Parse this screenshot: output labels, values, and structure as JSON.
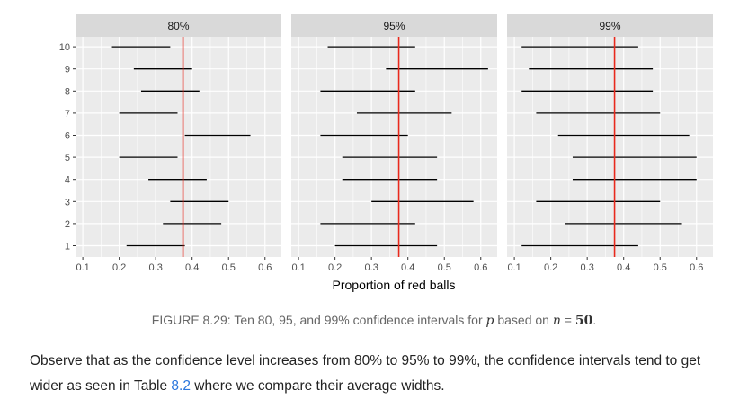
{
  "chart_data": {
    "type": "interval",
    "xlabel": "Proportion of red balls",
    "xlim": [
      0.08,
      0.645
    ],
    "x_ticks": [
      "0.1",
      "0.2",
      "0.3",
      "0.4",
      "0.5",
      "0.6"
    ],
    "x_tick_values": [
      0.1,
      0.2,
      0.3,
      0.4,
      0.5,
      0.6
    ],
    "y_categories": [
      "1",
      "2",
      "3",
      "4",
      "5",
      "6",
      "7",
      "8",
      "9",
      "10"
    ],
    "reference_line": 0.375,
    "colors": {
      "interval": "#000000",
      "reference": "#e8291c",
      "panel_bg": "#ebebeb",
      "strip_bg": "#d9d9d9",
      "grid": "#ffffff"
    },
    "grid": true,
    "panels": [
      {
        "label": "80%",
        "intervals": [
          {
            "y": 1,
            "lo": 0.22,
            "hi": 0.38
          },
          {
            "y": 2,
            "lo": 0.32,
            "hi": 0.48
          },
          {
            "y": 3,
            "lo": 0.34,
            "hi": 0.5
          },
          {
            "y": 4,
            "lo": 0.28,
            "hi": 0.44
          },
          {
            "y": 5,
            "lo": 0.2,
            "hi": 0.36
          },
          {
            "y": 6,
            "lo": 0.38,
            "hi": 0.56
          },
          {
            "y": 7,
            "lo": 0.2,
            "hi": 0.36
          },
          {
            "y": 8,
            "lo": 0.26,
            "hi": 0.42
          },
          {
            "y": 9,
            "lo": 0.24,
            "hi": 0.4
          },
          {
            "y": 10,
            "lo": 0.18,
            "hi": 0.34
          }
        ]
      },
      {
        "label": "95%",
        "intervals": [
          {
            "y": 1,
            "lo": 0.2,
            "hi": 0.48
          },
          {
            "y": 2,
            "lo": 0.16,
            "hi": 0.42
          },
          {
            "y": 3,
            "lo": 0.3,
            "hi": 0.58
          },
          {
            "y": 4,
            "lo": 0.22,
            "hi": 0.48
          },
          {
            "y": 5,
            "lo": 0.22,
            "hi": 0.48
          },
          {
            "y": 6,
            "lo": 0.16,
            "hi": 0.4
          },
          {
            "y": 7,
            "lo": 0.26,
            "hi": 0.52
          },
          {
            "y": 8,
            "lo": 0.16,
            "hi": 0.42
          },
          {
            "y": 9,
            "lo": 0.34,
            "hi": 0.62
          },
          {
            "y": 10,
            "lo": 0.18,
            "hi": 0.42
          }
        ]
      },
      {
        "label": "99%",
        "intervals": [
          {
            "y": 1,
            "lo": 0.12,
            "hi": 0.44
          },
          {
            "y": 2,
            "lo": 0.24,
            "hi": 0.56
          },
          {
            "y": 3,
            "lo": 0.16,
            "hi": 0.5
          },
          {
            "y": 4,
            "lo": 0.26,
            "hi": 0.6
          },
          {
            "y": 5,
            "lo": 0.26,
            "hi": 0.6
          },
          {
            "y": 6,
            "lo": 0.22,
            "hi": 0.58
          },
          {
            "y": 7,
            "lo": 0.16,
            "hi": 0.5
          },
          {
            "y": 8,
            "lo": 0.12,
            "hi": 0.48
          },
          {
            "y": 9,
            "lo": 0.14,
            "hi": 0.48
          },
          {
            "y": 10,
            "lo": 0.12,
            "hi": 0.44
          }
        ]
      }
    ]
  },
  "caption": {
    "prefix": "FIGURE 8.29: Ten 80, 95, and 99% confidence intervals for ",
    "p": "p",
    "middle": " based on ",
    "n": "n",
    "equals": " = ",
    "n_value": "50",
    "suffix": "."
  },
  "body": {
    "text_before_link": "Observe that as the confidence level increases from 80% to 95% to 99%, the confidence intervals tend to get wider as seen in Table ",
    "link": "8.2",
    "text_after_link": " where we compare their average widths."
  }
}
